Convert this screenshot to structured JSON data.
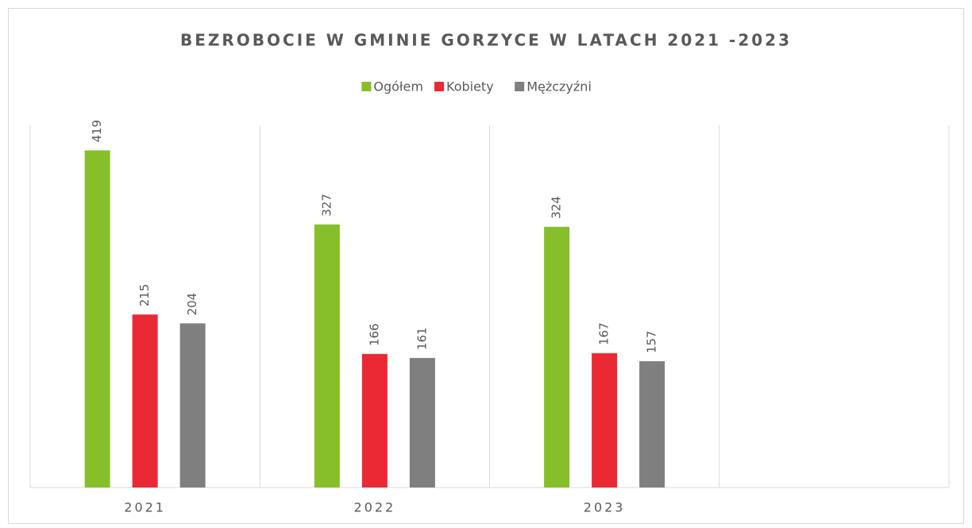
{
  "chart_data": {
    "type": "bar",
    "title": "BEZROBOCIE W GMINIE GORZYCE W LATACH 2021 -2023",
    "categories": [
      "2021",
      "2022",
      "2023",
      null
    ],
    "series": [
      {
        "name": "Ogółem",
        "color": "#86bf2a",
        "values": [
          419,
          327,
          324,
          null
        ]
      },
      {
        "name": "Kobiety",
        "color": "#ea2934",
        "values": [
          215,
          166,
          167,
          null
        ]
      },
      {
        "name": "Mężczyźni",
        "color": "#7f7f7f",
        "values": [
          204,
          161,
          157,
          null
        ]
      }
    ],
    "ylim": [
      0,
      450
    ],
    "grid": "x",
    "legend": "top"
  }
}
